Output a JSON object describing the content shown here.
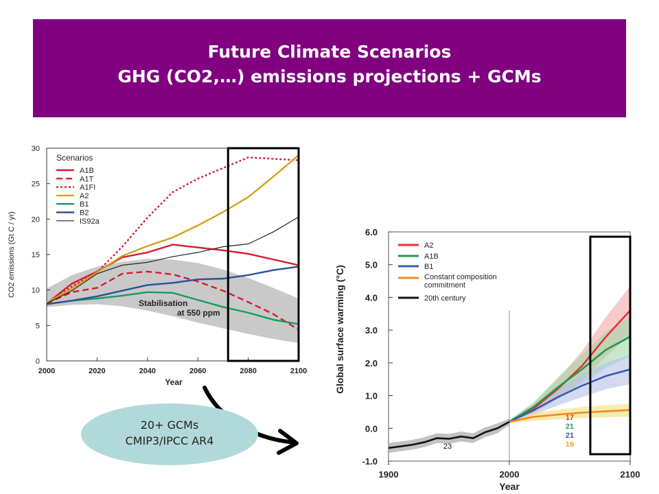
{
  "slide": {
    "title_line1": "Future Climate Scenarios",
    "title_line2": "GHG (CO2,…) emissions projections + GCMs",
    "title_bg": "#800080",
    "callout_line1": "20+ GCMs",
    "callout_line2": "CMIP3/IPCC AR4",
    "callout_bg": "#b2d9d9"
  },
  "chart_data": [
    {
      "type": "line",
      "ylabel": "CO2 emissions (Gt C / yr)",
      "xlabel": "Year",
      "xlim": [
        2000,
        2100
      ],
      "ylim": [
        0,
        30
      ],
      "x_ticks": [
        2000,
        2020,
        2040,
        2060,
        2080,
        2100
      ],
      "y_ticks": [
        0,
        5,
        10,
        15,
        20,
        25,
        30
      ],
      "legend_title": "Scenarios",
      "legend_position": "top-left",
      "annotation_line1": "Stabilisation",
      "annotation_line2": "at 550 ppm",
      "highlight_box_x": [
        2072,
        2100
      ],
      "band": {
        "x": [
          2000,
          2010,
          2020,
          2030,
          2040,
          2050,
          2060,
          2070,
          2080,
          2090,
          2100
        ],
        "upper": [
          10.2,
          12.1,
          13.3,
          14.0,
          14.4,
          14.3,
          13.8,
          12.9,
          11.7,
          10.3,
          8.8
        ],
        "lower": [
          7.6,
          7.9,
          8.0,
          7.7,
          7.1,
          6.3,
          5.4,
          4.6,
          3.8,
          3.1,
          2.5
        ]
      },
      "series": [
        {
          "name": "A1B",
          "color": "#d7192f",
          "dash": "solid",
          "x": [
            2000,
            2010,
            2020,
            2030,
            2040,
            2050,
            2060,
            2070,
            2080,
            2090,
            2100
          ],
          "values": [
            8.1,
            10.9,
            12.6,
            14.6,
            15.3,
            16.4,
            16.0,
            15.6,
            15.1,
            14.3,
            13.5
          ]
        },
        {
          "name": "A1T",
          "color": "#d7192f",
          "dash": "dashed",
          "x": [
            2000,
            2010,
            2020,
            2030,
            2040,
            2050,
            2060,
            2070,
            2080,
            2090,
            2100
          ],
          "values": [
            8.1,
            9.7,
            10.3,
            12.3,
            12.6,
            12.2,
            11.2,
            9.9,
            8.3,
            6.6,
            4.4
          ]
        },
        {
          "name": "A1FI",
          "color": "#d7192f",
          "dash": "dotted",
          "x": [
            2000,
            2010,
            2020,
            2030,
            2040,
            2050,
            2060,
            2070,
            2080,
            2090,
            2100
          ],
          "values": [
            8.1,
            10.5,
            12.5,
            16.1,
            20.2,
            23.8,
            25.7,
            27.2,
            28.7,
            28.5,
            28.3
          ]
        },
        {
          "name": "A2",
          "color": "#d4a017",
          "dash": "solid",
          "x": [
            2000,
            2010,
            2020,
            2030,
            2040,
            2050,
            2060,
            2070,
            2080,
            2090,
            2100
          ],
          "values": [
            8.2,
            10.2,
            12.5,
            14.8,
            16.2,
            17.4,
            19.1,
            21.0,
            23.1,
            26.0,
            29.0
          ]
        },
        {
          "name": "B1",
          "color": "#159b5c",
          "dash": "solid",
          "x": [
            2000,
            2010,
            2020,
            2030,
            2040,
            2050,
            2060,
            2070,
            2080,
            2090,
            2100
          ],
          "values": [
            8.0,
            8.5,
            8.8,
            9.2,
            9.7,
            9.6,
            8.6,
            7.6,
            6.8,
            5.8,
            5.2
          ]
        },
        {
          "name": "B2",
          "color": "#2c4e9a",
          "dash": "solid",
          "x": [
            2000,
            2010,
            2020,
            2030,
            2040,
            2050,
            2060,
            2070,
            2080,
            2090,
            2100
          ],
          "values": [
            8.0,
            8.5,
            9.1,
            9.9,
            10.7,
            11.0,
            11.5,
            11.6,
            12.1,
            12.8,
            13.3
          ]
        },
        {
          "name": "IS92a",
          "color": "#222222",
          "dash": "solid",
          "thin": true,
          "x": [
            2000,
            2010,
            2020,
            2030,
            2040,
            2050,
            2060,
            2070,
            2080,
            2090,
            2100
          ],
          "values": [
            8.1,
            9.9,
            12.3,
            13.5,
            13.9,
            14.7,
            15.3,
            16.1,
            16.5,
            18.2,
            20.3
          ]
        }
      ]
    },
    {
      "type": "line",
      "ylabel": "Global surface warming (°C)",
      "xlabel": "Year",
      "xlim": [
        1900,
        2100
      ],
      "ylim": [
        -1.0,
        6.0
      ],
      "x_ticks": [
        1900,
        2000,
        2100
      ],
      "y_ticks": [
        -1.0,
        0.0,
        1.0,
        2.0,
        3.0,
        4.0,
        5.0,
        6.0
      ],
      "legend_position": "top-left",
      "highlight_box_x": [
        2067,
        2100
      ],
      "model_counts": [
        {
          "label": "17",
          "color": "#e03a3a"
        },
        {
          "label": "21",
          "color": "#27a050"
        },
        {
          "label": "21",
          "color": "#3b56b0"
        },
        {
          "label": "16",
          "color": "#f0a020"
        }
      ],
      "historical_count_label": "23",
      "series": [
        {
          "name": "A2",
          "color": "#e8302f",
          "band": "#f4a7a7",
          "x": [
            2000,
            2020,
            2040,
            2060,
            2080,
            2100
          ],
          "values": [
            0.2,
            0.6,
            1.2,
            1.9,
            2.8,
            3.6
          ],
          "spread": [
            0.05,
            0.15,
            0.3,
            0.45,
            0.6,
            0.75
          ]
        },
        {
          "name": "A1B",
          "color": "#1f9a4a",
          "band": "#9fd7a9",
          "x": [
            2000,
            2020,
            2040,
            2060,
            2080,
            2100
          ],
          "values": [
            0.2,
            0.65,
            1.25,
            1.8,
            2.4,
            2.8
          ],
          "spread": [
            0.05,
            0.15,
            0.3,
            0.45,
            0.55,
            0.6
          ]
        },
        {
          "name": "B1",
          "color": "#3a58b8",
          "band": "#b7bfe6",
          "x": [
            2000,
            2020,
            2040,
            2060,
            2080,
            2100
          ],
          "values": [
            0.2,
            0.55,
            0.95,
            1.3,
            1.6,
            1.8
          ],
          "spread": [
            0.05,
            0.15,
            0.25,
            0.35,
            0.4,
            0.45
          ]
        },
        {
          "name": "Constant composition commitment",
          "color": "#f08a1e",
          "band": "#f7e07a",
          "x": [
            2000,
            2020,
            2040,
            2060,
            2080,
            2100
          ],
          "values": [
            0.2,
            0.35,
            0.42,
            0.48,
            0.52,
            0.56
          ],
          "spread": [
            0.05,
            0.12,
            0.15,
            0.17,
            0.18,
            0.2
          ]
        },
        {
          "name": "20th century",
          "color": "#111111",
          "band": "#9a9a9a",
          "x": [
            1900,
            1910,
            1920,
            1930,
            1940,
            1950,
            1960,
            1970,
            1980,
            1990,
            2000
          ],
          "values": [
            -0.6,
            -0.55,
            -0.5,
            -0.42,
            -0.3,
            -0.32,
            -0.25,
            -0.3,
            -0.12,
            0.0,
            0.2
          ],
          "spread": [
            0.15,
            0.15,
            0.15,
            0.15,
            0.15,
            0.15,
            0.15,
            0.15,
            0.15,
            0.15,
            0.1
          ]
        }
      ]
    }
  ]
}
